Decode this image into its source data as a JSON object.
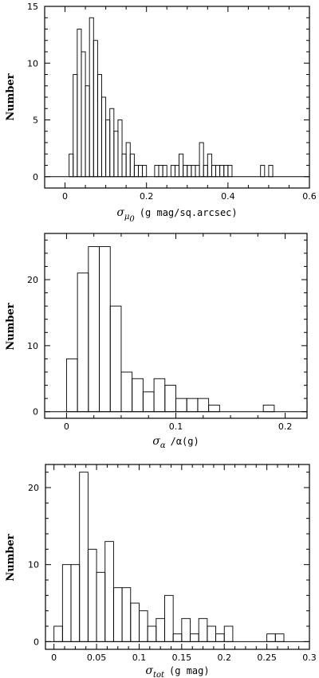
{
  "chart_data": [
    {
      "type": "bar",
      "ylabel": "Number",
      "xlabel": {
        "symbol": "σ",
        "subscript": "μ",
        "subsub": "0",
        "text": "(g mag/sq.arcsec)"
      },
      "xlim": [
        -0.05,
        0.6
      ],
      "ylim": [
        -1,
        15
      ],
      "xticks": [
        "0",
        "0.2",
        "0.4",
        "0.6"
      ],
      "yticks": [
        "0",
        "5",
        "10",
        "15"
      ],
      "bin_width": 0.01,
      "bin_starts": [
        0.01,
        0.02,
        0.03,
        0.04,
        0.05,
        0.06,
        0.07,
        0.08,
        0.09,
        0.1,
        0.11,
        0.12,
        0.13,
        0.14,
        0.15,
        0.16,
        0.17,
        0.18,
        0.19,
        0.22,
        0.23,
        0.24,
        0.26,
        0.27,
        0.28,
        0.29,
        0.3,
        0.31,
        0.32,
        0.33,
        0.34,
        0.35,
        0.36,
        0.37,
        0.38,
        0.39,
        0.4,
        0.48,
        0.5
      ],
      "counts": [
        2,
        9,
        13,
        11,
        8,
        14,
        12,
        9,
        7,
        5,
        6,
        4,
        5,
        2,
        3,
        2,
        1,
        1,
        1,
        1,
        1,
        1,
        1,
        1,
        2,
        1,
        1,
        1,
        1,
        3,
        1,
        2,
        1,
        1,
        1,
        1,
        1,
        1,
        1
      ]
    },
    {
      "type": "bar",
      "ylabel": "Number",
      "xlabel": {
        "symbol": "σ",
        "subscript": "α",
        "text": "/α(g)"
      },
      "xlim": [
        -0.02,
        0.22
      ],
      "ylim": [
        -1,
        27
      ],
      "xticks": [
        "0",
        "0.1",
        "0.2"
      ],
      "yticks": [
        "0",
        "10",
        "20"
      ],
      "bin_width": 0.01,
      "bin_starts": [
        0.0,
        0.01,
        0.02,
        0.03,
        0.04,
        0.05,
        0.06,
        0.07,
        0.08,
        0.09,
        0.1,
        0.11,
        0.12,
        0.13,
        0.18
      ],
      "counts": [
        8,
        21,
        25,
        25,
        16,
        6,
        5,
        3,
        5,
        4,
        2,
        2,
        2,
        1,
        1
      ]
    },
    {
      "type": "bar",
      "ylabel": "Number",
      "xlabel": {
        "symbol": "σ",
        "subscript": "tot",
        "text": "(g mag)"
      },
      "xlim": [
        -0.01,
        0.3
      ],
      "ylim": [
        -1,
        23
      ],
      "xticks": [
        "0",
        "0.05",
        "0.1",
        "0.15",
        "0.2",
        "0.25",
        "0.3"
      ],
      "yticks": [
        "0",
        "10",
        "20"
      ],
      "bin_width": 0.01,
      "bin_starts": [
        0.0,
        0.01,
        0.02,
        0.03,
        0.04,
        0.05,
        0.06,
        0.07,
        0.08,
        0.09,
        0.1,
        0.11,
        0.12,
        0.13,
        0.14,
        0.15,
        0.16,
        0.17,
        0.18,
        0.19,
        0.2,
        0.25,
        0.26
      ],
      "counts": [
        2,
        10,
        10,
        22,
        12,
        9,
        13,
        7,
        7,
        5,
        4,
        2,
        3,
        6,
        1,
        3,
        1,
        3,
        2,
        1,
        2,
        1,
        1
      ]
    }
  ]
}
